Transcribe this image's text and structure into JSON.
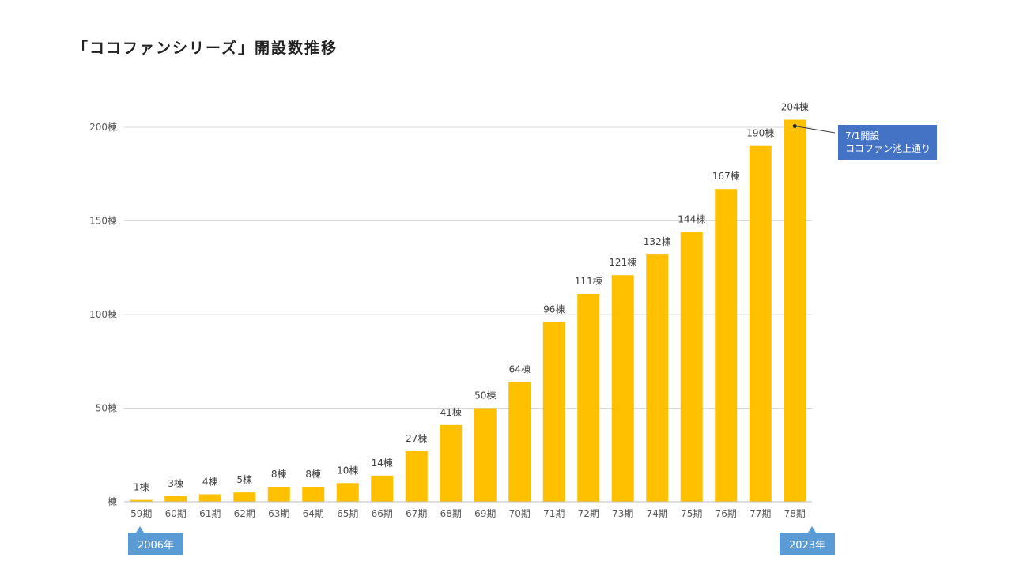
{
  "chart_data": {
    "type": "bar",
    "title": "「ココファンシリーズ」開設数推移",
    "categories": [
      "59期",
      "60期",
      "61期",
      "62期",
      "63期",
      "64期",
      "65期",
      "66期",
      "67期",
      "68期",
      "69期",
      "70期",
      "71期",
      "72期",
      "73期",
      "74期",
      "75期",
      "76期",
      "77期",
      "78期"
    ],
    "values": [
      1,
      3,
      4,
      5,
      8,
      8,
      10,
      14,
      27,
      41,
      50,
      64,
      96,
      111,
      121,
      132,
      144,
      167,
      190,
      204
    ],
    "data_labels": [
      "1棟",
      "3棟",
      "4棟",
      "5棟",
      "8棟",
      "8棟",
      "10棟",
      "14棟",
      "27棟",
      "41棟",
      "50棟",
      "64棟",
      "96棟",
      "111棟",
      "121棟",
      "132棟",
      "144棟",
      "167棟",
      "190棟",
      "204棟"
    ],
    "ylim": [
      0,
      200
    ],
    "yticks": [
      0,
      50,
      100,
      150,
      200
    ],
    "ytick_labels": [
      "棟",
      "50棟",
      "100棟",
      "150棟",
      "200棟"
    ],
    "bar_color": "#ffc000",
    "grid": true,
    "annotations": {
      "callout_line1": "7/1開設",
      "callout_line2": "ココファン池上通り",
      "start_year": "2006年",
      "end_year": "2023年"
    }
  }
}
